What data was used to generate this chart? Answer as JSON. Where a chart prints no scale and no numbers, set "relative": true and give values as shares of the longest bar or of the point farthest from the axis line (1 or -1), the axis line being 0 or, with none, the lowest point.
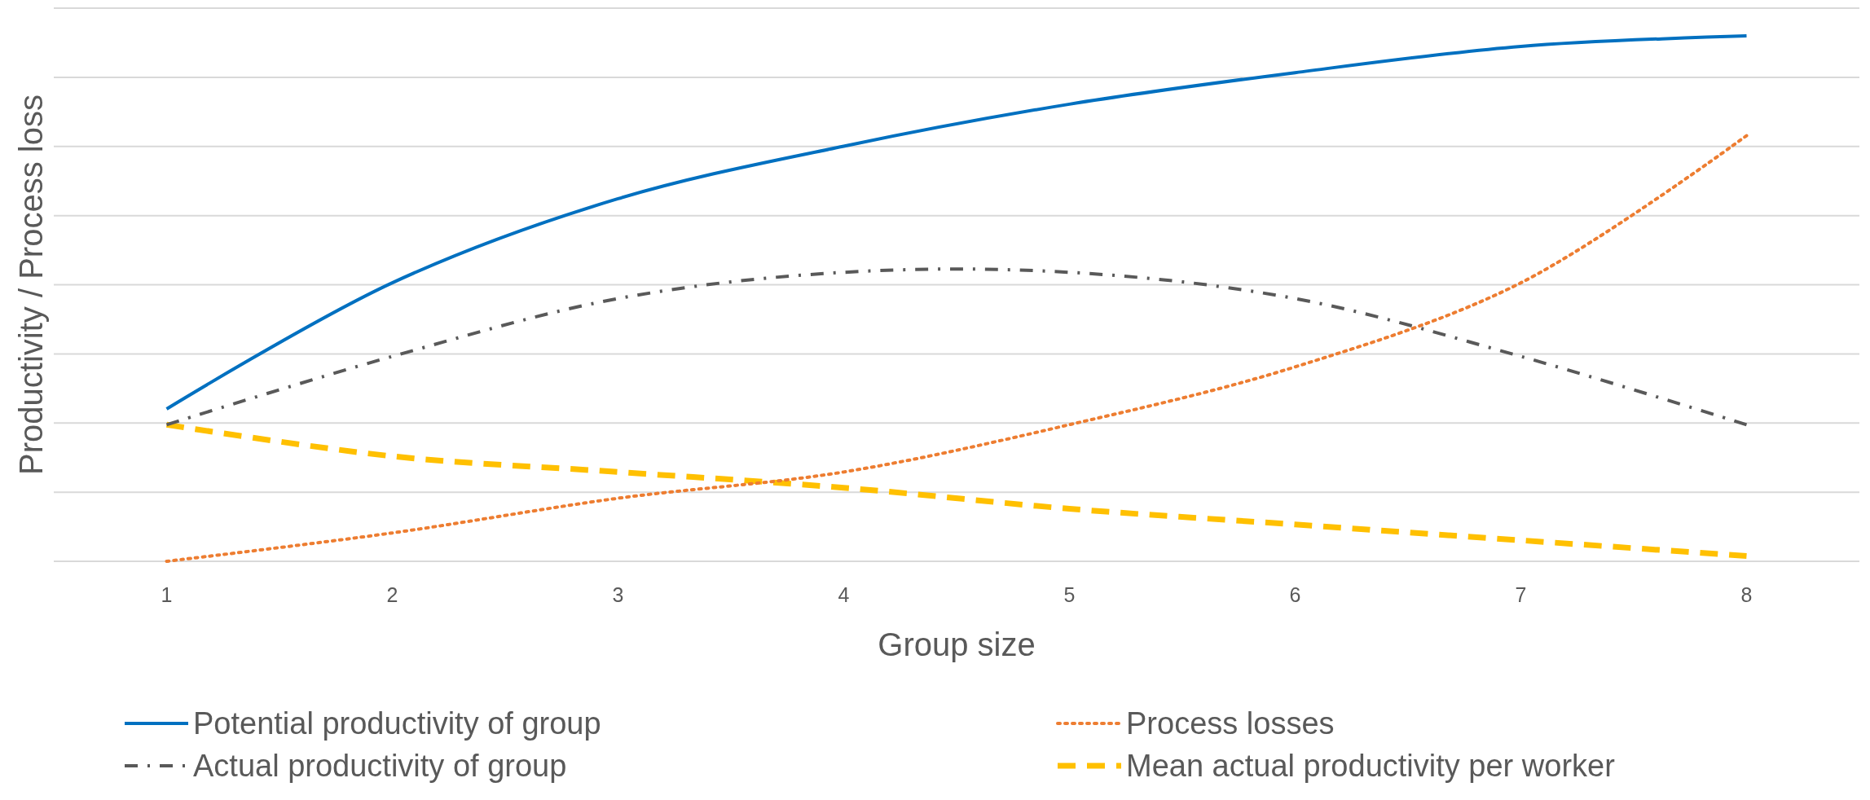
{
  "chart_data": {
    "type": "line",
    "relative": true,
    "xlabel": "Group size",
    "ylabel": "Productivity / Process loss",
    "categories": [
      "1",
      "2",
      "3",
      "4",
      "5",
      "6",
      "7",
      "8"
    ],
    "grid": "y",
    "legend": "bottom",
    "marker": "none",
    "series": [
      {
        "name": "Potential productivity of group",
        "color": "#0070c0",
        "line_style": "solid",
        "values": [
          0.29,
          0.53,
          0.69,
          0.79,
          0.87,
          0.93,
          0.98,
          1
        ]
      },
      {
        "name": "Process losses",
        "color": "#ed7d31",
        "line_style": "dotted",
        "values": [
          0,
          0.054,
          0.12,
          0.17,
          0.26,
          0.37,
          0.53,
          0.81
        ]
      },
      {
        "name": "Actual productivity of group",
        "color": "#595959",
        "line_style": "dashed",
        "values": [
          0.26,
          0.39,
          0.5,
          0.55,
          0.55,
          0.5,
          0.39,
          0.26
        ]
      },
      {
        "name": "Mean actual productivity per worker",
        "color": "#ffc000",
        "line_style": "dashed",
        "values": [
          0.26,
          0.2,
          0.17,
          0.14,
          0.1,
          0.07,
          0.04,
          0.01
        ]
      }
    ]
  }
}
